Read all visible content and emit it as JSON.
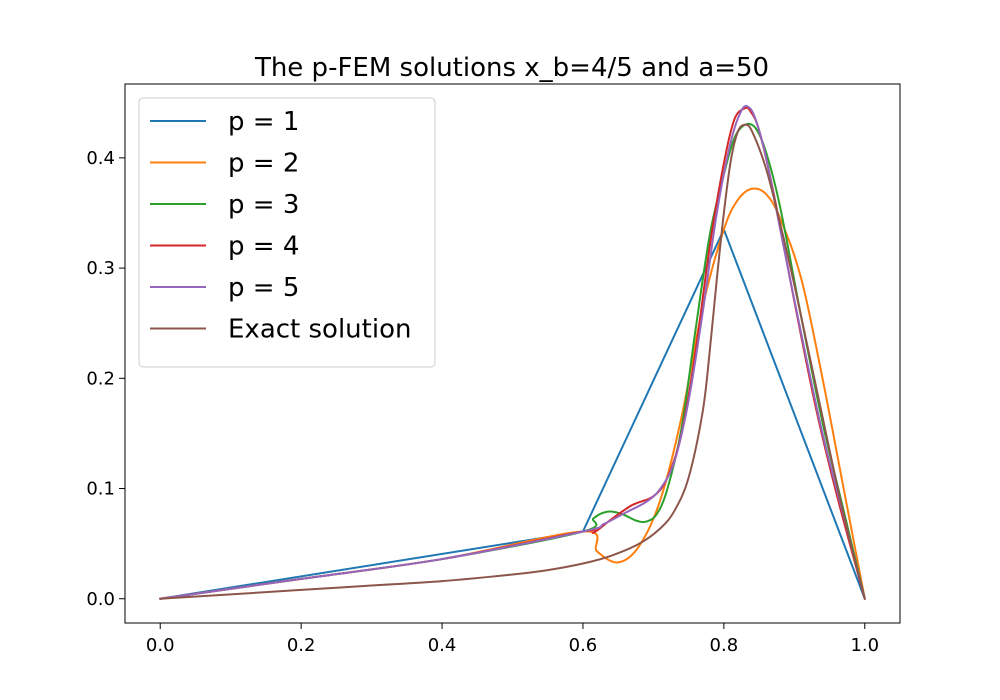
{
  "chart_data": {
    "type": "line",
    "title": "The p-FEM solutions x_b=4/5 and a=50",
    "xlabel": "",
    "ylabel": "",
    "xlim": [
      -0.05,
      1.05
    ],
    "ylim": [
      -0.022,
      0.467
    ],
    "xticks": [
      0.0,
      0.2,
      0.4,
      0.6,
      0.8,
      1.0
    ],
    "xtick_labels": [
      "0.0",
      "0.2",
      "0.4",
      "0.6",
      "0.8",
      "1.0"
    ],
    "yticks": [
      0.0,
      0.1,
      0.2,
      0.3,
      0.4
    ],
    "ytick_labels": [
      "0.0",
      "0.1",
      "0.2",
      "0.3",
      "0.4"
    ],
    "grid": false,
    "legend_position": "upper-left",
    "series": [
      {
        "name": "p = 1",
        "color": "#1f77b4",
        "x": [
          0.0,
          0.6,
          0.8,
          1.0
        ],
        "y": [
          0.0,
          0.061,
          0.335,
          0.0
        ]
      },
      {
        "name": "p = 2",
        "color": "#ff7f0e",
        "x": [
          0.0,
          0.2,
          0.4,
          0.6,
          0.62,
          0.65,
          0.68,
          0.71,
          0.74,
          0.77,
          0.8,
          0.82,
          0.84,
          0.86,
          0.88,
          0.91,
          0.94,
          0.97,
          1.0
        ],
        "y": [
          0.0,
          0.018,
          0.036,
          0.061,
          0.043,
          0.033,
          0.048,
          0.09,
          0.165,
          0.265,
          0.335,
          0.362,
          0.372,
          0.367,
          0.345,
          0.29,
          0.2,
          0.1,
          0.0
        ]
      },
      {
        "name": "p = 3",
        "color": "#2ca02c",
        "x": [
          0.0,
          0.2,
          0.4,
          0.6,
          0.615,
          0.635,
          0.655,
          0.675,
          0.69,
          0.705,
          0.72,
          0.74,
          0.76,
          0.78,
          0.8,
          0.815,
          0.83,
          0.845,
          0.86,
          0.88,
          0.91,
          0.94,
          0.97,
          1.0
        ],
        "y": [
          0.0,
          0.018,
          0.036,
          0.061,
          0.073,
          0.079,
          0.077,
          0.071,
          0.07,
          0.077,
          0.1,
          0.155,
          0.245,
          0.33,
          0.385,
          0.418,
          0.43,
          0.427,
          0.405,
          0.355,
          0.255,
          0.16,
          0.08,
          0.0
        ]
      },
      {
        "name": "p = 4",
        "color": "#d62728",
        "x": [
          0.0,
          0.2,
          0.4,
          0.6,
          0.615,
          0.64,
          0.67,
          0.7,
          0.72,
          0.74,
          0.76,
          0.78,
          0.8,
          0.815,
          0.83,
          0.838,
          0.85,
          0.87,
          0.9,
          0.93,
          0.96,
          1.0
        ],
        "y": [
          0.0,
          0.018,
          0.036,
          0.061,
          0.06,
          0.072,
          0.085,
          0.093,
          0.11,
          0.15,
          0.225,
          0.32,
          0.395,
          0.435,
          0.445,
          0.442,
          0.425,
          0.37,
          0.27,
          0.175,
          0.095,
          0.0
        ]
      },
      {
        "name": "p = 5",
        "color": "#9467bd",
        "x": [
          0.0,
          0.2,
          0.4,
          0.6,
          0.63,
          0.66,
          0.69,
          0.71,
          0.73,
          0.75,
          0.77,
          0.79,
          0.81,
          0.825,
          0.835,
          0.845,
          0.86,
          0.88,
          0.91,
          0.94,
          0.97,
          1.0
        ],
        "y": [
          0.0,
          0.018,
          0.036,
          0.061,
          0.068,
          0.078,
          0.088,
          0.1,
          0.125,
          0.18,
          0.26,
          0.35,
          0.415,
          0.443,
          0.446,
          0.435,
          0.4,
          0.335,
          0.24,
          0.15,
          0.075,
          0.0
        ]
      },
      {
        "name": "Exact solution",
        "color": "#8c564b",
        "x": [
          0.0,
          0.1,
          0.2,
          0.3,
          0.4,
          0.5,
          0.55,
          0.6,
          0.64,
          0.68,
          0.71,
          0.73,
          0.75,
          0.77,
          0.78,
          0.79,
          0.8,
          0.81,
          0.82,
          0.83,
          0.84,
          0.86,
          0.88,
          0.9,
          0.92,
          0.94,
          0.96,
          0.98,
          1.0
        ],
        "y": [
          0.0,
          0.004,
          0.008,
          0.012,
          0.016,
          0.022,
          0.026,
          0.032,
          0.039,
          0.05,
          0.064,
          0.08,
          0.11,
          0.17,
          0.225,
          0.29,
          0.35,
          0.398,
          0.424,
          0.43,
          0.424,
          0.39,
          0.34,
          0.285,
          0.225,
          0.165,
          0.105,
          0.05,
          0.0
        ]
      }
    ]
  }
}
